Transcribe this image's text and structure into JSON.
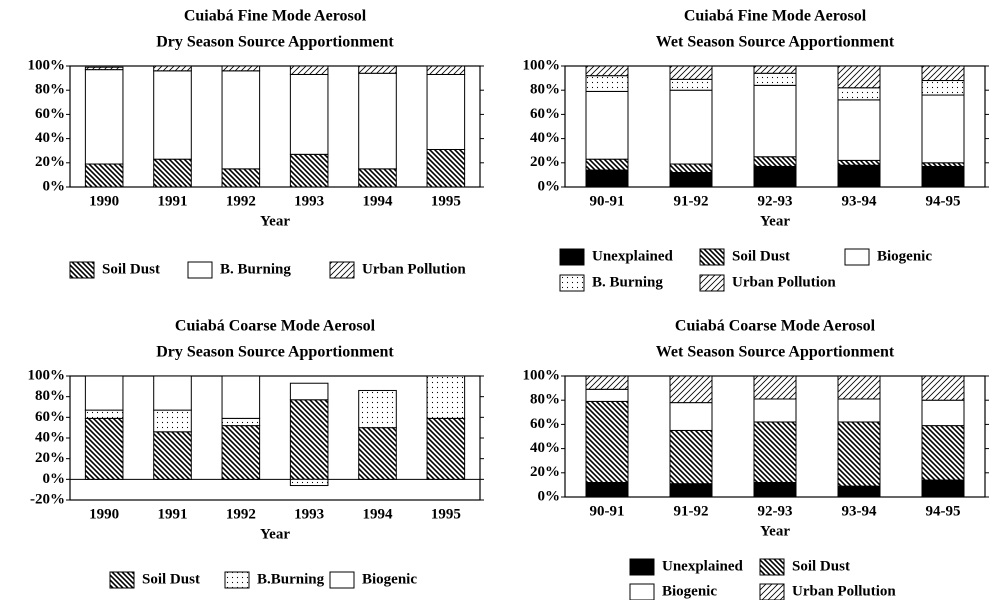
{
  "chart_data": [
    {
      "type": "bar",
      "stacked": true,
      "title": "Cuiabá Fine Mode Aerosol",
      "subtitle": "Dry Season Source Apportionment",
      "x_label": "Year",
      "categories": [
        "1990",
        "1991",
        "1992",
        "1993",
        "1994",
        "1995"
      ],
      "series": [
        {
          "name": "Soil Dust",
          "color": "#000000",
          "pattern": "backslash",
          "values": [
            19,
            23,
            15,
            27,
            15,
            31
          ]
        },
        {
          "name": "B. Burning",
          "color": "#ffffff",
          "pattern": "solid",
          "values": [
            78,
            73,
            81,
            66,
            79,
            62
          ]
        },
        {
          "name": "Urban Pollution",
          "color": "#000000",
          "pattern": "slash",
          "values": [
            2,
            4,
            4,
            7,
            6,
            7
          ]
        }
      ],
      "ylim": [
        0,
        100
      ],
      "yticks": [
        {
          "value": 0,
          "label": "0%"
        },
        {
          "value": 20,
          "label": "20%"
        },
        {
          "value": 40,
          "label": "40%"
        },
        {
          "value": 60,
          "label": "60%"
        },
        {
          "value": 80,
          "label": "80%"
        },
        {
          "value": 100,
          "label": "100%"
        }
      ]
    },
    {
      "type": "bar",
      "stacked": true,
      "title": "Cuiabá Fine Mode Aerosol",
      "subtitle": "Wet Season Source Apportionment",
      "x_label": "Year",
      "categories": [
        "90-91",
        "91-92",
        "92-93",
        "93-94",
        "94-95"
      ],
      "series": [
        {
          "name": "Unexplained",
          "color": "#000000",
          "pattern": "solid",
          "values": [
            14,
            12,
            17,
            18,
            17
          ]
        },
        {
          "name": "Soil Dust",
          "color": "#000000",
          "pattern": "backslash",
          "values": [
            9,
            7,
            8,
            4,
            3
          ]
        },
        {
          "name": "Biogenic",
          "color": "#ffffff",
          "pattern": "solid",
          "values": [
            56,
            61,
            59,
            50,
            56
          ]
        },
        {
          "name": "B. Burning",
          "color": "#000000",
          "pattern": "dots",
          "values": [
            13,
            9,
            10,
            10,
            12
          ]
        },
        {
          "name": "Urban Pollution",
          "color": "#000000",
          "pattern": "slash",
          "values": [
            8,
            11,
            6,
            18,
            12
          ]
        }
      ],
      "ylim": [
        0,
        100
      ],
      "yticks": [
        {
          "value": 0,
          "label": "0%"
        },
        {
          "value": 20,
          "label": "20%"
        },
        {
          "value": 40,
          "label": "40%"
        },
        {
          "value": 60,
          "label": "60%"
        },
        {
          "value": 80,
          "label": "80%"
        },
        {
          "value": 100,
          "label": "100%"
        }
      ]
    },
    {
      "type": "bar",
      "stacked": true,
      "title": "Cuiabá Coarse Mode Aerosol",
      "subtitle": "Dry Season Source Apportionment",
      "x_label": "Year",
      "categories": [
        "1990",
        "1991",
        "1992",
        "1993",
        "1994",
        "1995"
      ],
      "series": [
        {
          "name": "Soil Dust",
          "color": "#000000",
          "pattern": "backslash",
          "values": [
            59,
            46,
            52,
            77,
            50,
            59
          ]
        },
        {
          "name": "B.Burning",
          "color": "#000000",
          "pattern": "dots",
          "values": [
            8,
            21,
            7,
            -6,
            36,
            41
          ]
        },
        {
          "name": "Biogenic",
          "color": "#ffffff",
          "pattern": "solid",
          "values": [
            33,
            33,
            41,
            16,
            0,
            0
          ]
        }
      ],
      "ylim": [
        -20,
        100
      ],
      "yticks": [
        {
          "value": -20,
          "label": "-20%"
        },
        {
          "value": 0,
          "label": "0%"
        },
        {
          "value": 20,
          "label": "20%"
        },
        {
          "value": 40,
          "label": "40%"
        },
        {
          "value": 60,
          "label": "60%"
        },
        {
          "value": 80,
          "label": "80%"
        },
        {
          "value": 100,
          "label": "100%"
        }
      ]
    },
    {
      "type": "bar",
      "stacked": true,
      "title": "Cuiabá Coarse Mode Aerosol",
      "subtitle": "Wet Season Source Apportionment",
      "x_label": "Year",
      "categories": [
        "90-91",
        "91-92",
        "92-93",
        "93-94",
        "94-95"
      ],
      "series": [
        {
          "name": "Unexplained",
          "color": "#000000",
          "pattern": "solid",
          "values": [
            12,
            11,
            12,
            9,
            14
          ]
        },
        {
          "name": "Soil Dust",
          "color": "#000000",
          "pattern": "backslash",
          "values": [
            67,
            44,
            50,
            53,
            45
          ]
        },
        {
          "name": "Biogenic",
          "color": "#ffffff",
          "pattern": "solid",
          "values": [
            10,
            23,
            19,
            19,
            21
          ]
        },
        {
          "name": "Urban Pollution",
          "color": "#000000",
          "pattern": "slash",
          "values": [
            11,
            22,
            19,
            19,
            20
          ]
        }
      ],
      "ylim": [
        0,
        100
      ],
      "yticks": [
        {
          "value": 0,
          "label": "0%"
        },
        {
          "value": 20,
          "label": "20%"
        },
        {
          "value": 40,
          "label": "40%"
        },
        {
          "value": 60,
          "label": "60%"
        },
        {
          "value": 80,
          "label": "80%"
        },
        {
          "value": 100,
          "label": "100%"
        }
      ]
    }
  ]
}
